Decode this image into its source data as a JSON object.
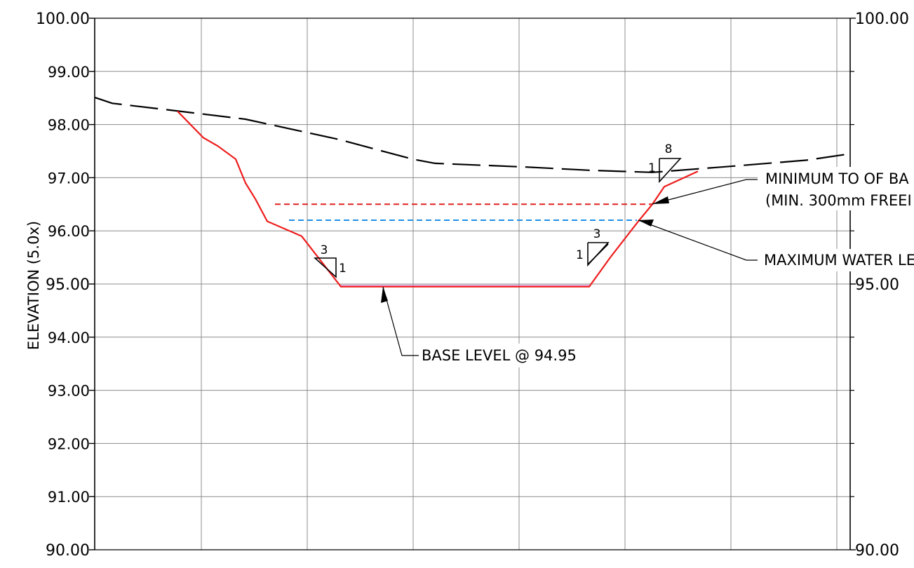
{
  "axes": {
    "ylabel": "ELEVATION (5.0x)",
    "left_ticks": [
      "100.00",
      "99.00",
      "98.00",
      "97.00",
      "96.00",
      "95.00",
      "94.00",
      "93.00",
      "92.00",
      "91.00",
      "90.00"
    ],
    "right_ticks": [
      "100.00",
      "95.00",
      "90.00"
    ]
  },
  "annotations": {
    "min_top_line1": "MINIMUM TO OF BA",
    "min_top_line2": "(MIN. 300mm FREEI",
    "max_water": "MAXIMUM WATER LE",
    "base_level": "BASE LEVEL @ 94.95"
  },
  "slopes": {
    "left_run": "3",
    "left_rise": "1",
    "right_run": "3",
    "right_rise": "1",
    "top_run": "8",
    "top_rise": "1"
  },
  "colors": {
    "existing_ground": "#000000",
    "design_section": "#ee1c1c",
    "min_top_bank": "#e02020",
    "max_water_level": "#1e8fe8",
    "gridline": "#8c8c8c",
    "base_highlight": "#d080d0"
  },
  "chart_data": {
    "type": "line",
    "ylabel": "ELEVATION (5.0x)",
    "ylim": [
      90.0,
      100.0
    ],
    "y_right_ticks": [
      90.0,
      95.0,
      100.0
    ],
    "grid": true,
    "series": [
      {
        "key": "existing_ground",
        "style": "dashed",
        "values": [
          98.51,
          98.4,
          98.25,
          98.1,
          97.9,
          97.72,
          97.35,
          97.27,
          97.2,
          97.14,
          97.1,
          97.22,
          97.33,
          97.45
        ]
      },
      {
        "key": "design_section",
        "style": "solid",
        "values": [
          98.25,
          97.75,
          97.6,
          97.35,
          96.9,
          96.6,
          96.18,
          95.9,
          94.95,
          94.95,
          95.5,
          96.18,
          96.5,
          96.83,
          97.12
        ]
      },
      {
        "key": "min_top_bank",
        "style": "dashed",
        "values": [
          96.5,
          96.5
        ]
      },
      {
        "key": "max_water_level",
        "style": "dashed",
        "values": [
          96.2,
          96.2
        ]
      }
    ]
  }
}
